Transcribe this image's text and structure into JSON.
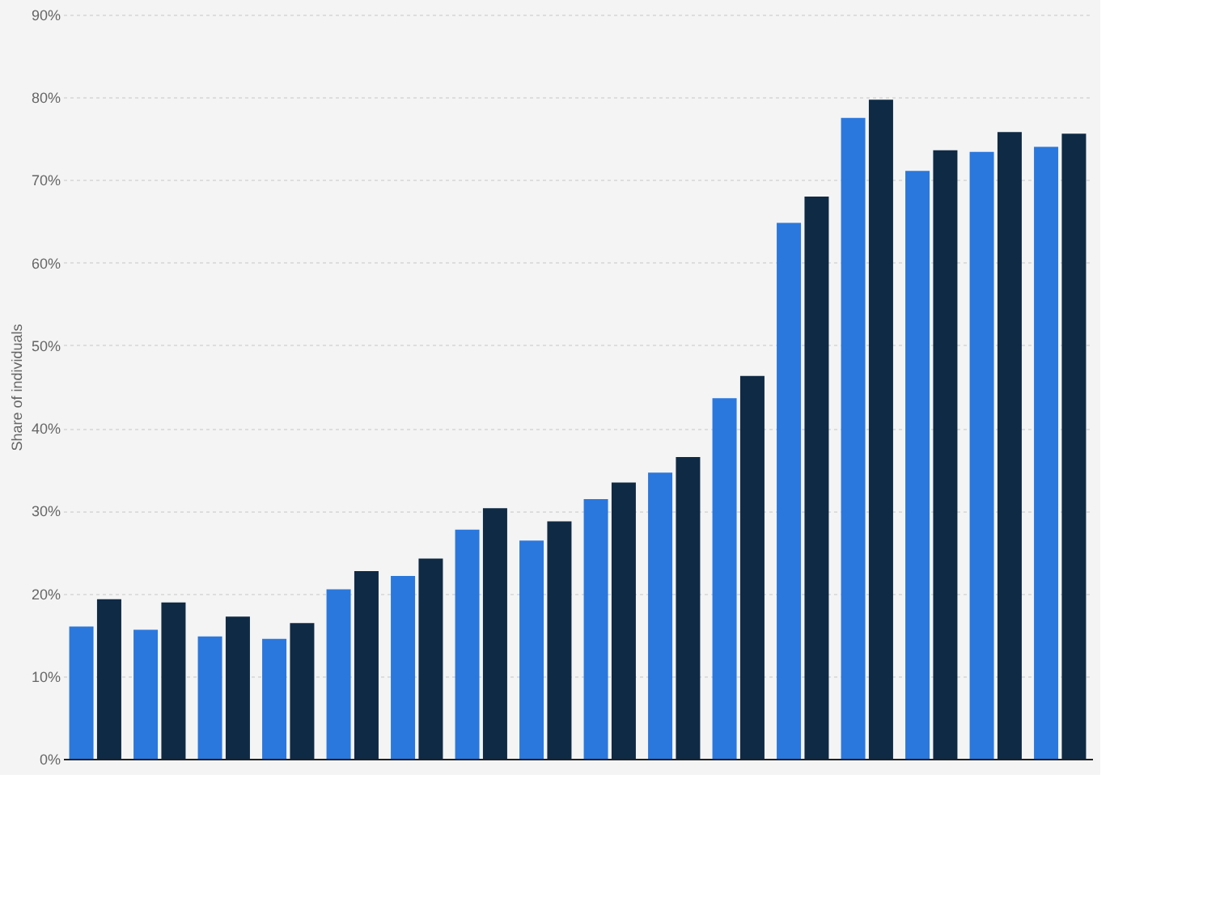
{
  "chart_data": {
    "type": "bar",
    "ylabel": "Share of individuals",
    "categories": [
      null,
      null,
      null,
      null,
      null,
      null,
      null,
      null,
      null,
      null,
      null,
      null,
      null,
      null,
      null,
      null
    ],
    "series": [
      {
        "color": "#2a78de",
        "values": [
          16.0,
          15.6,
          14.8,
          14.5,
          20.5,
          22.1,
          27.7,
          26.4,
          31.4,
          34.6,
          43.6,
          64.8,
          77.5,
          71.1,
          73.4,
          74.0
        ]
      },
      {
        "color": "#0f2a45",
        "values": [
          19.3,
          18.9,
          17.2,
          16.4,
          22.7,
          24.2,
          30.3,
          28.7,
          33.4,
          36.5,
          46.3,
          68.0,
          79.7,
          73.6,
          75.8,
          75.6
        ]
      }
    ],
    "ylim": [
      0,
      90
    ],
    "yticks": [
      {
        "value": 0,
        "label": "0%"
      },
      {
        "value": 10,
        "label": "10%"
      },
      {
        "value": 20,
        "label": "20%"
      },
      {
        "value": 30,
        "label": "30%"
      },
      {
        "value": 40,
        "label": "40%"
      },
      {
        "value": 50,
        "label": "50%"
      },
      {
        "value": 60,
        "label": "60%"
      },
      {
        "value": 70,
        "label": "70%"
      },
      {
        "value": 80,
        "label": "80%"
      },
      {
        "value": 90,
        "label": "90%"
      }
    ],
    "grid": "y",
    "legend": false,
    "tick_labels": "y"
  }
}
